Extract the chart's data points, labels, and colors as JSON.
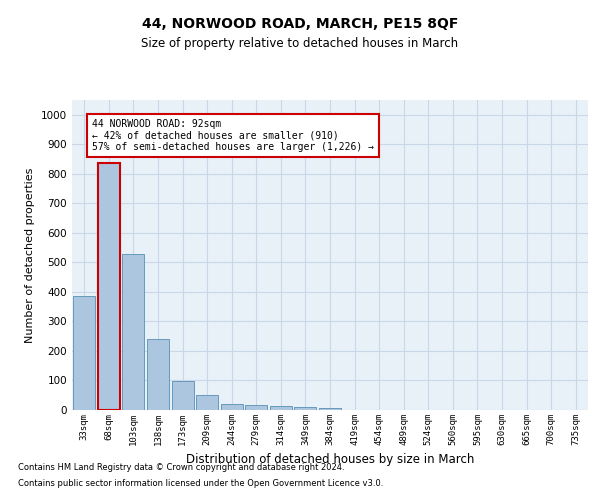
{
  "title": "44, NORWOOD ROAD, MARCH, PE15 8QF",
  "subtitle": "Size of property relative to detached houses in March",
  "xlabel": "Distribution of detached houses by size in March",
  "ylabel": "Number of detached properties",
  "footnote1": "Contains HM Land Registry data © Crown copyright and database right 2024.",
  "footnote2": "Contains public sector information licensed under the Open Government Licence v3.0.",
  "annotation_line1": "44 NORWOOD ROAD: 92sqm",
  "annotation_line2": "← 42% of detached houses are smaller (910)",
  "annotation_line3": "57% of semi-detached houses are larger (1,226) →",
  "bar_color": "#adc6e0",
  "bar_edge_color": "#6699bb",
  "highlight_bar_edge_color": "#cc0000",
  "annotation_box_edge_color": "#cc0000",
  "grid_color": "#c8d8e8",
  "background_color": "#e8f0f8",
  "categories": [
    "33sqm",
    "68sqm",
    "103sqm",
    "138sqm",
    "173sqm",
    "209sqm",
    "244sqm",
    "279sqm",
    "314sqm",
    "349sqm",
    "384sqm",
    "419sqm",
    "454sqm",
    "489sqm",
    "524sqm",
    "560sqm",
    "595sqm",
    "630sqm",
    "665sqm",
    "700sqm",
    "735sqm"
  ],
  "values": [
    385,
    835,
    530,
    240,
    97,
    52,
    22,
    18,
    15,
    10,
    8,
    0,
    0,
    0,
    0,
    0,
    0,
    0,
    0,
    0,
    0
  ],
  "ylim": [
    0,
    1050
  ],
  "yticks": [
    0,
    100,
    200,
    300,
    400,
    500,
    600,
    700,
    800,
    900,
    1000
  ],
  "highlight_index": 1,
  "fig_width": 6.0,
  "fig_height": 5.0
}
